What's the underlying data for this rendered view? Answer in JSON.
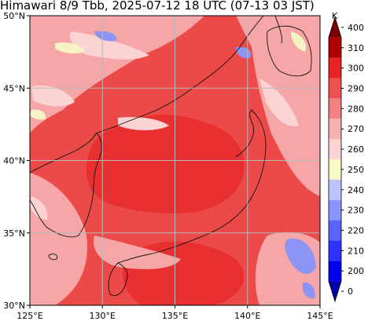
{
  "title": "Himawari 8/9 Tbb, 2025-07-12 18 UTC (07-13 03 JST)",
  "map": {
    "lon_range": [
      125,
      145
    ],
    "lat_range": [
      30,
      50
    ],
    "xticks": [
      {
        "value": 125,
        "label": "125°E"
      },
      {
        "value": 130,
        "label": "130°E"
      },
      {
        "value": 135,
        "label": "135°E"
      },
      {
        "value": 140,
        "label": "140°E"
      },
      {
        "value": 145,
        "label": "145°E"
      }
    ],
    "yticks": [
      {
        "value": 30,
        "label": "30°N"
      },
      {
        "value": 35,
        "label": "35°N"
      },
      {
        "value": 40,
        "label": "40°N"
      },
      {
        "value": 45,
        "label": "45°N"
      },
      {
        "value": 50,
        "label": "50°N"
      }
    ],
    "grid": true,
    "colors": {
      "background": "#ec4a48",
      "warm_core": "#e83030",
      "cloud_light": "#f6a6a6",
      "cloud_pale": "#fbd3d3",
      "cloud_yellow": "#f7f3c5",
      "cloud_blue": "#8c94f4",
      "coast": "#111111"
    }
  },
  "colorbar": {
    "unit": "K",
    "ticks": [
      0,
      200,
      210,
      220,
      230,
      240,
      250,
      260,
      270,
      280,
      290,
      300,
      310,
      400
    ],
    "colors": [
      "#0000a8",
      "#0000ee",
      "#2b34ff",
      "#5a62ff",
      "#8c94ff",
      "#bcc4ff",
      "#f8f8c4",
      "#fbd3d3",
      "#f6b0b0",
      "#f28282",
      "#ee5050",
      "#e82323",
      "#b00000",
      "#7a0000"
    ]
  }
}
